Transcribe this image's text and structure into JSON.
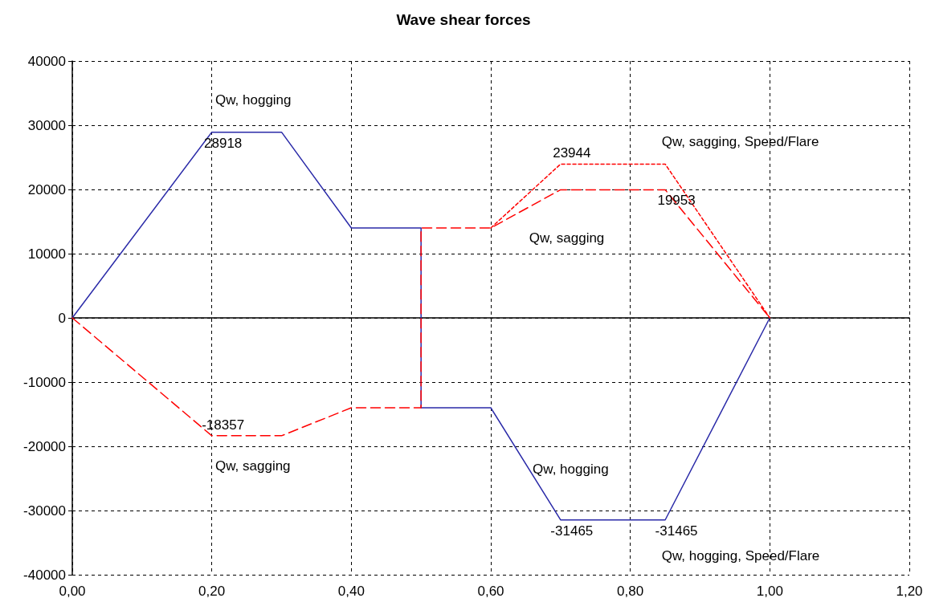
{
  "chart_data": {
    "type": "line",
    "title": "Wave shear forces",
    "xlim": [
      0,
      1.2
    ],
    "xticks": [
      {
        "value": 0,
        "label": "0,00"
      },
      {
        "value": 0.2,
        "label": "0,20"
      },
      {
        "value": 0.4,
        "label": "0,40"
      },
      {
        "value": 0.6,
        "label": "0,60"
      },
      {
        "value": 0.8,
        "label": "0,80"
      },
      {
        "value": 1.0,
        "label": "1,00"
      },
      {
        "value": 1.2,
        "label": "1,20"
      }
    ],
    "ylim": [
      -40000,
      40000
    ],
    "yticks": [
      -40000,
      -30000,
      -20000,
      -10000,
      0,
      10000,
      20000,
      30000,
      40000
    ],
    "grid": true,
    "marker": "none",
    "series": [
      {
        "color": "#2a2aa8",
        "line_style": "solid",
        "x": [
          0,
          0.2,
          0.3,
          0.4,
          0.5,
          0.5,
          0.6,
          0.7,
          0.85,
          1.0
        ],
        "values": [
          0,
          28918,
          28918,
          14000,
          14000,
          -14000,
          -14000,
          -31465,
          -31465,
          0
        ],
        "value_labels": [
          null,
          "28918",
          null,
          null,
          null,
          null,
          null,
          "-31465",
          "-31465",
          null
        ]
      },
      {
        "color": "#ff0000",
        "line_style": "dashed",
        "x": [
          0,
          0.2,
          0.3,
          0.4,
          0.5,
          0.5,
          0.6,
          0.7,
          0.85,
          1.0
        ],
        "values": [
          0,
          -18357,
          -18357,
          -14000,
          -14000,
          14000,
          14000,
          19953,
          19953,
          0
        ],
        "value_labels": [
          null,
          "-18357",
          null,
          null,
          null,
          null,
          null,
          null,
          "19953",
          null
        ]
      },
      {
        "color": "#ff0000",
        "line_style": "dotted",
        "x": [
          0.6,
          0.7,
          0.85,
          1.0
        ],
        "values": [
          14000,
          23944,
          23944,
          0
        ],
        "value_labels": [
          null,
          "23944",
          null,
          null
        ]
      }
    ],
    "annotations": [
      "Qw, hogging",
      "Qw, sagging, Speed/Flare",
      "Qw, sagging",
      "Qw, sagging",
      "Qw, hogging",
      "Qw, hogging, Speed/Flare"
    ]
  }
}
